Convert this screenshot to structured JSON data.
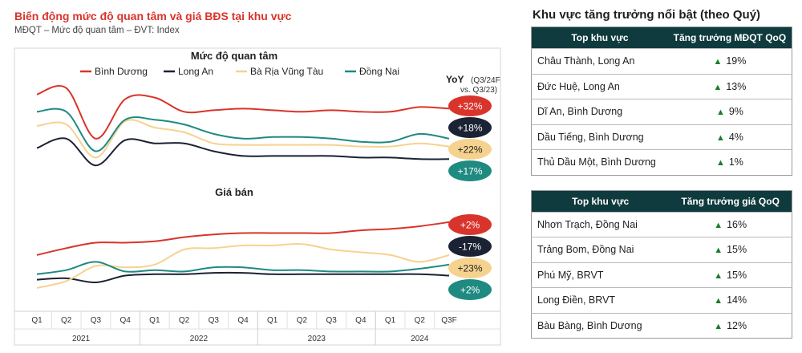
{
  "chart": {
    "title": "Biến động mức độ quan tâm và giá BĐS tại khu vực",
    "subtitle": "MĐQT – Mức độ quan tâm – ĐVT: Index"
  },
  "chart_data": {
    "type": "line",
    "x_categories": [
      "Q1",
      "Q2",
      "Q3",
      "Q4",
      "Q1",
      "Q2",
      "Q3",
      "Q4",
      "Q1",
      "Q2",
      "Q3",
      "Q4",
      "Q1",
      "Q2",
      "Q3F"
    ],
    "x_groups": [
      {
        "label": "2021",
        "span": 4
      },
      {
        "label": "2022",
        "span": 4
      },
      {
        "label": "2023",
        "span": 4
      },
      {
        "label": "2024",
        "span": 3
      }
    ],
    "legend": [
      "Bình Dương",
      "Long An",
      "Bà Rịa Vũng Tàu",
      "Đồng Nai"
    ],
    "colors": [
      "#d9342b",
      "#1b2233",
      "#f6d28f",
      "#1f8a80"
    ],
    "yoy_label": [
      "YoY",
      "(Q3/24F",
      "vs. Q3/23)"
    ],
    "panels": [
      {
        "title": "Mức độ quan tâm",
        "series": [
          {
            "name": "Bình Dương",
            "values": [
              86,
              90,
              58,
              83,
              84,
              75,
              76,
              77,
              76,
              75,
              76,
              75,
              75,
              78,
              77
            ]
          },
          {
            "name": "Long An",
            "values": [
              52,
              58,
              41,
              57,
              55,
              55,
              50,
              47,
              47,
              47,
              47,
              46,
              46,
              45,
              45
            ]
          },
          {
            "name": "Bà Rịa Vũng Tàu",
            "values": [
              66,
              67,
              46,
              69,
              65,
              62,
              55,
              54,
              54,
              54,
              54,
              53,
              53,
              55,
              53
            ]
          },
          {
            "name": "Đồng Nai",
            "values": [
              75,
              75,
              50,
              70,
              70,
              67,
              61,
              58,
              59,
              59,
              58,
              56,
              56,
              61,
              58
            ]
          }
        ],
        "yoy": [
          "+32%",
          "+18%",
          "+22%",
          "+17%"
        ]
      },
      {
        "title": "Giá bán",
        "series": [
          {
            "name": "Bình Dương",
            "values": [
              22,
              27,
              31,
              31,
              32,
              35,
              37,
              38,
              38,
              38,
              38,
              40,
              41,
              43,
              46
            ]
          },
          {
            "name": "Long An",
            "values": [
              4,
              5,
              2,
              7,
              8,
              8,
              9,
              9,
              8,
              8,
              8,
              8,
              8,
              8,
              7
            ]
          },
          {
            "name": "Bà Rịa Vũng Tàu",
            "values": [
              -2,
              3,
              14,
              13,
              15,
              26,
              27,
              29,
              29,
              30,
              26,
              24,
              22,
              17,
              22
            ]
          },
          {
            "name": "Đồng Nai",
            "values": [
              8,
              11,
              17,
              10,
              11,
              10,
              13,
              13,
              11,
              11,
              10,
              10,
              10,
              12,
              15
            ]
          }
        ],
        "yoy": [
          "+2%",
          "-17%",
          "+23%",
          "+2%"
        ]
      }
    ]
  },
  "right_panel": {
    "title": "Khu vực tăng trưởng nổi bật (theo Quý)",
    "tables": [
      {
        "headers": [
          "Top khu vực",
          "Tăng trưởng MĐQT QoQ"
        ],
        "rows": [
          {
            "area": "Châu Thành, Long An",
            "growth": "19%"
          },
          {
            "area": "Đức Huệ, Long An",
            "growth": "13%"
          },
          {
            "area": "Dĩ An, Bình Dương",
            "growth": "9%"
          },
          {
            "area": "Dầu Tiếng, Bình Dương",
            "growth": "4%"
          },
          {
            "area": "Thủ Dầu Một, Bình Dương",
            "growth": "1%"
          }
        ]
      },
      {
        "headers": [
          "Top khu vực",
          "Tăng trưởng giá QoQ"
        ],
        "rows": [
          {
            "area": "Nhơn Trạch, Đồng Nai",
            "growth": "16%"
          },
          {
            "area": "Trảng Bom, Đồng Nai",
            "growth": "15%"
          },
          {
            "area": "Phú Mỹ, BRVT",
            "growth": "15%"
          },
          {
            "area": "Long Điền, BRVT",
            "growth": "14%"
          },
          {
            "area": "Bàu Bàng, Bình Dương",
            "growth": "12%"
          }
        ]
      }
    ],
    "icon": "triangle-up-icon"
  }
}
